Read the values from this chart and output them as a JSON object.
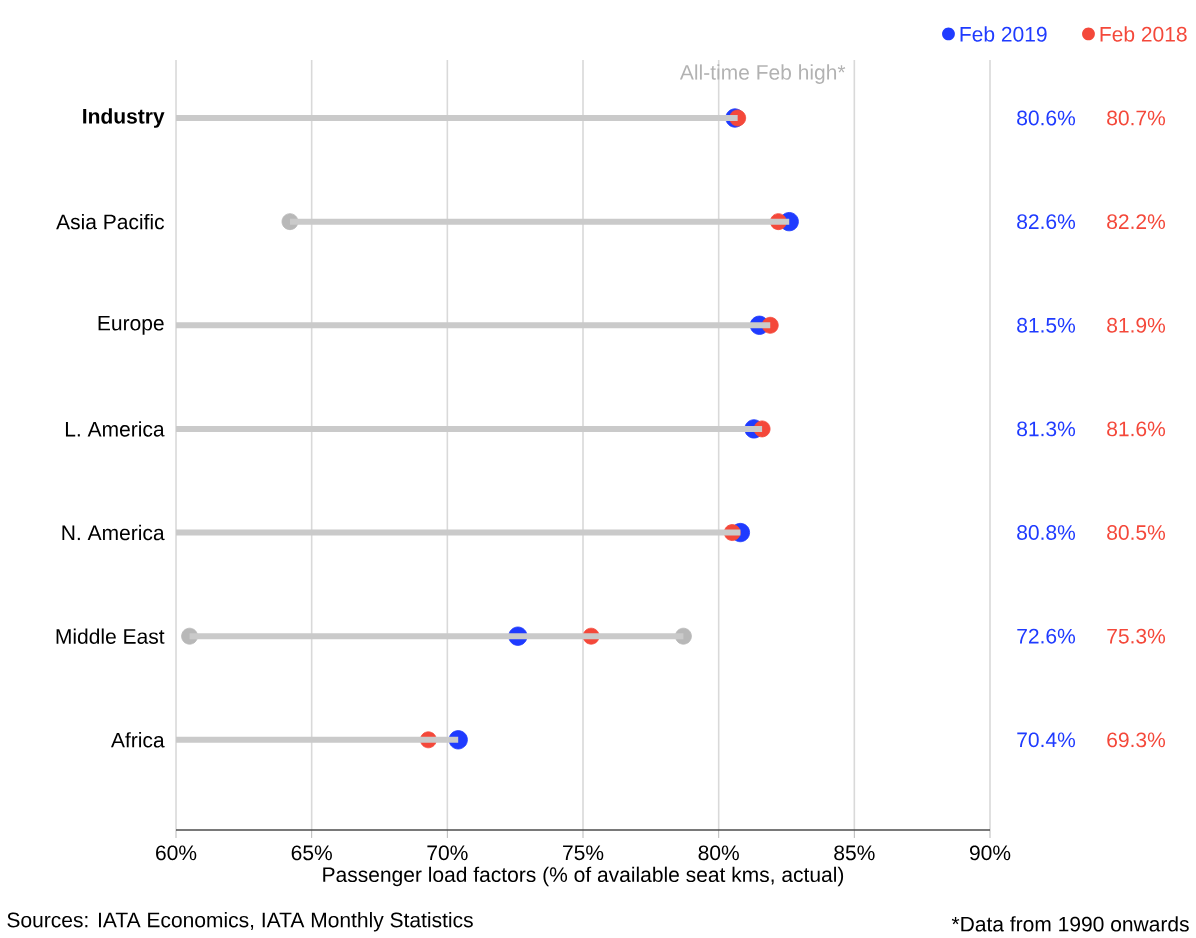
{
  "chart_data": {
    "type": "bar",
    "orientation": "horizontal",
    "categories": [
      "Industry",
      "Asia Pacific",
      "Europe",
      "L. America",
      "N. America",
      "Middle East",
      "Africa"
    ],
    "series": [
      {
        "type": "bar",
        "color": "#cacaca",
        "base": [
          60,
          64.2,
          60,
          60,
          60,
          60.5,
          60
        ],
        "values": [
          20.7,
          18.4,
          21.9,
          21.6,
          20.8,
          18.2,
          10.4
        ]
      },
      {
        "type": "scatter",
        "color": "#b8b8b8",
        "values": [
          null,
          64.2,
          null,
          null,
          null,
          60.5,
          null
        ]
      },
      {
        "type": "scatter",
        "color": "#b8b8b8",
        "values": [
          null,
          null,
          null,
          null,
          null,
          78.7,
          null
        ]
      },
      {
        "type": "scatter",
        "name": "Feb 2019",
        "color": "#1f3bff",
        "values": [
          80.6,
          82.6,
          81.5,
          81.3,
          80.8,
          72.6,
          70.4
        ],
        "value_labels": [
          "80.6%",
          "82.6%",
          "81.5%",
          "81.3%",
          "80.8%",
          "72.6%",
          "70.4%"
        ]
      },
      {
        "type": "scatter",
        "name": "Feb 2018",
        "color": "#f4483a",
        "values": [
          80.7,
          82.2,
          81.9,
          81.6,
          80.5,
          75.3,
          69.3
        ],
        "value_labels": [
          "80.7%",
          "82.2%",
          "81.9%",
          "81.6%",
          "80.5%",
          "75.3%",
          "69.3%"
        ]
      }
    ],
    "xlim": [
      60,
      90
    ],
    "xticks": [
      {
        "value": 60,
        "label": "60%"
      },
      {
        "value": 65,
        "label": "65%"
      },
      {
        "value": 70,
        "label": "70%"
      },
      {
        "value": 75,
        "label": "75%"
      },
      {
        "value": 80,
        "label": "80%"
      },
      {
        "value": 85,
        "label": "85%"
      },
      {
        "value": 90,
        "label": "90%"
      }
    ],
    "xlabel": "Passenger load factors (% of available seat kms, actual)",
    "annotations": [
      "All-time Feb high*",
      "Sources: IATA Economics, IATA Monthly Statistics",
      "*Data from 1990 onwards"
    ],
    "grid": "x",
    "legend": "top right",
    "marker": "circle"
  }
}
